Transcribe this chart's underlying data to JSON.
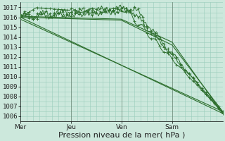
{
  "background_color": "#cce8dc",
  "plot_bg_color": "#cce8dc",
  "grid_color": "#99ccbb",
  "line_color": "#2d6e2d",
  "ylim": [
    1005.5,
    1017.5
  ],
  "yticks": [
    1006,
    1007,
    1008,
    1009,
    1010,
    1011,
    1012,
    1013,
    1014,
    1015,
    1016,
    1017
  ],
  "xlabel": "Pression niveau de la mer( hPa )",
  "xlabel_fontsize": 8,
  "tick_fontsize": 6.5,
  "day_labels": [
    "Mer",
    "Jeu",
    "Ven",
    "Sam"
  ],
  "day_positions": [
    0,
    48,
    96,
    144
  ],
  "total_points": 193
}
